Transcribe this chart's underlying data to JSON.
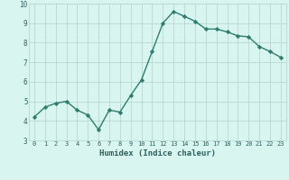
{
  "x": [
    0,
    1,
    2,
    3,
    4,
    5,
    6,
    7,
    8,
    9,
    10,
    11,
    12,
    13,
    14,
    15,
    16,
    17,
    18,
    19,
    20,
    21,
    22,
    23
  ],
  "y": [
    4.2,
    4.7,
    4.9,
    5.0,
    4.55,
    4.3,
    3.55,
    4.55,
    4.45,
    5.3,
    6.1,
    7.55,
    9.0,
    9.6,
    9.35,
    9.1,
    8.7,
    8.7,
    8.55,
    8.35,
    8.3,
    7.8,
    7.55,
    7.25
  ],
  "line_color": "#2e7d6e",
  "marker": "D",
  "marker_size": 2.2,
  "bg_color": "#d9f5f0",
  "grid_color": "#b8d8d2",
  "xlabel": "Humidex (Indice chaleur)",
  "ylim": [
    3,
    10
  ],
  "xlim": [
    -0.5,
    23.5
  ],
  "xtick_labels": [
    "0",
    "1",
    "2",
    "3",
    "4",
    "5",
    "6",
    "7",
    "8",
    "9",
    "10",
    "11",
    "12",
    "13",
    "14",
    "15",
    "16",
    "17",
    "18",
    "19",
    "20",
    "21",
    "22",
    "23"
  ],
  "yticks": [
    3,
    4,
    5,
    6,
    7,
    8,
    9,
    10
  ],
  "font_color": "#2e6060",
  "linewidth": 1.0,
  "tick_fontsize": 5.0,
  "xlabel_fontsize": 6.5
}
